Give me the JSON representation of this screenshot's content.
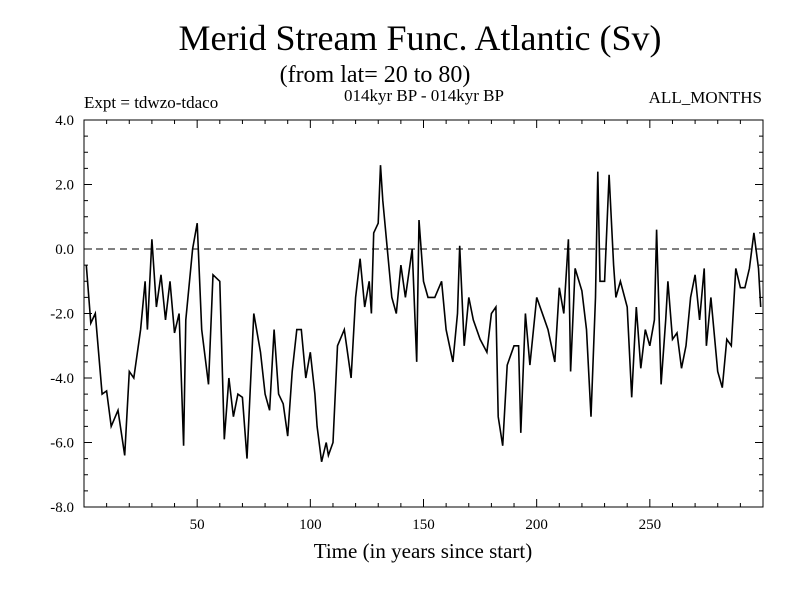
{
  "chart_data": {
    "type": "line",
    "title": "Merid Stream Func. Atlantic (Sv)",
    "subtitle": "(from lat= 20 to 80)",
    "left_note": "Expt = tdwzo-tdaco",
    "center_note": "014kyr BP - 014kyr BP",
    "right_note": "ALL_MONTHS",
    "xlabel": "Time (in years since start)",
    "ylabel": "",
    "xlim": [
      0,
      300
    ],
    "ylim": [
      -8.0,
      4.0
    ],
    "x_ticks": [
      50,
      100,
      150,
      200,
      250
    ],
    "x_tick_labels": [
      "50",
      "100",
      "150",
      "200",
      "250"
    ],
    "y_ticks": [
      -8,
      -6,
      -4,
      -2,
      0,
      2,
      4
    ],
    "y_tick_labels": [
      "-8.0",
      "-6.0",
      "-4.0",
      "-2.0",
      "0.0",
      "2.0",
      "4.0"
    ],
    "reference_line": 0.0,
    "grid": false,
    "series": [
      {
        "color": "#000000",
        "x": [
          1,
          3,
          5,
          8,
          10,
          12,
          15,
          18,
          20,
          22,
          25,
          27,
          28,
          30,
          32,
          34,
          36,
          38,
          40,
          42,
          44,
          45,
          48,
          50,
          52,
          55,
          57,
          60,
          62,
          64,
          66,
          68,
          70,
          72,
          75,
          78,
          80,
          82,
          84,
          86,
          88,
          90,
          92,
          94,
          96,
          98,
          100,
          102,
          103,
          105,
          107,
          108,
          110,
          112,
          115,
          118,
          120,
          122,
          124,
          126,
          127,
          128,
          130,
          131,
          132,
          134,
          136,
          138,
          140,
          142,
          145,
          147,
          148,
          150,
          152,
          155,
          158,
          160,
          163,
          165,
          166,
          168,
          170,
          172,
          175,
          178,
          180,
          182,
          183,
          185,
          187,
          190,
          192,
          193,
          195,
          197,
          200,
          203,
          205,
          208,
          210,
          212,
          214,
          215,
          217,
          220,
          222,
          224,
          226,
          227,
          228,
          230,
          232,
          234,
          235,
          237,
          240,
          242,
          244,
          246,
          248,
          250,
          252,
          253,
          255,
          257,
          258,
          260,
          262,
          264,
          266,
          268,
          270,
          272,
          274,
          275,
          277,
          280,
          282,
          284,
          286,
          288,
          290,
          292,
          294,
          296,
          298,
          299
        ],
        "y": [
          -0.5,
          -2.3,
          -2.0,
          -4.5,
          -4.4,
          -5.5,
          -5.0,
          -6.4,
          -3.8,
          -4.0,
          -2.5,
          -1.0,
          -2.5,
          0.3,
          -1.8,
          -0.8,
          -2.2,
          -1.0,
          -2.6,
          -2.0,
          -6.1,
          -2.2,
          0.0,
          0.8,
          -2.5,
          -4.2,
          -0.8,
          -1.0,
          -5.9,
          -4.0,
          -5.2,
          -4.5,
          -4.6,
          -6.5,
          -2.0,
          -3.2,
          -4.5,
          -5.0,
          -2.5,
          -4.5,
          -4.8,
          -5.8,
          -3.8,
          -2.5,
          -2.5,
          -4.0,
          -3.2,
          -4.5,
          -5.5,
          -6.6,
          -6.0,
          -6.4,
          -6.0,
          -3.0,
          -2.5,
          -4.0,
          -1.5,
          -0.3,
          -1.8,
          -1.0,
          -2.0,
          0.5,
          0.8,
          2.6,
          1.5,
          0.0,
          -1.5,
          -2.0,
          -0.5,
          -1.5,
          0.0,
          -3.5,
          0.9,
          -1.0,
          -1.5,
          -1.5,
          -1.0,
          -2.5,
          -3.5,
          -2.0,
          0.1,
          -3.0,
          -1.5,
          -2.2,
          -2.8,
          -3.2,
          -2.0,
          -1.8,
          -5.2,
          -6.1,
          -3.6,
          -3.0,
          -3.0,
          -5.7,
          -2.0,
          -3.6,
          -1.5,
          -2.1,
          -2.5,
          -3.5,
          -1.2,
          -2.0,
          0.3,
          -3.8,
          -0.6,
          -1.3,
          -2.5,
          -5.2,
          -1.5,
          2.4,
          -1.0,
          -1.0,
          2.3,
          -0.5,
          -1.5,
          -1.0,
          -1.8,
          -4.6,
          -1.8,
          -3.7,
          -2.5,
          -3.0,
          -2.2,
          0.6,
          -4.2,
          -2.2,
          -1.0,
          -2.8,
          -2.6,
          -3.7,
          -3.0,
          -1.5,
          -0.8,
          -2.2,
          -0.6,
          -3.0,
          -1.5,
          -3.8,
          -4.3,
          -2.8,
          -3.0,
          -0.6,
          -1.2,
          -1.2,
          -0.6,
          0.5,
          -0.6,
          -1.8
        ]
      }
    ]
  }
}
